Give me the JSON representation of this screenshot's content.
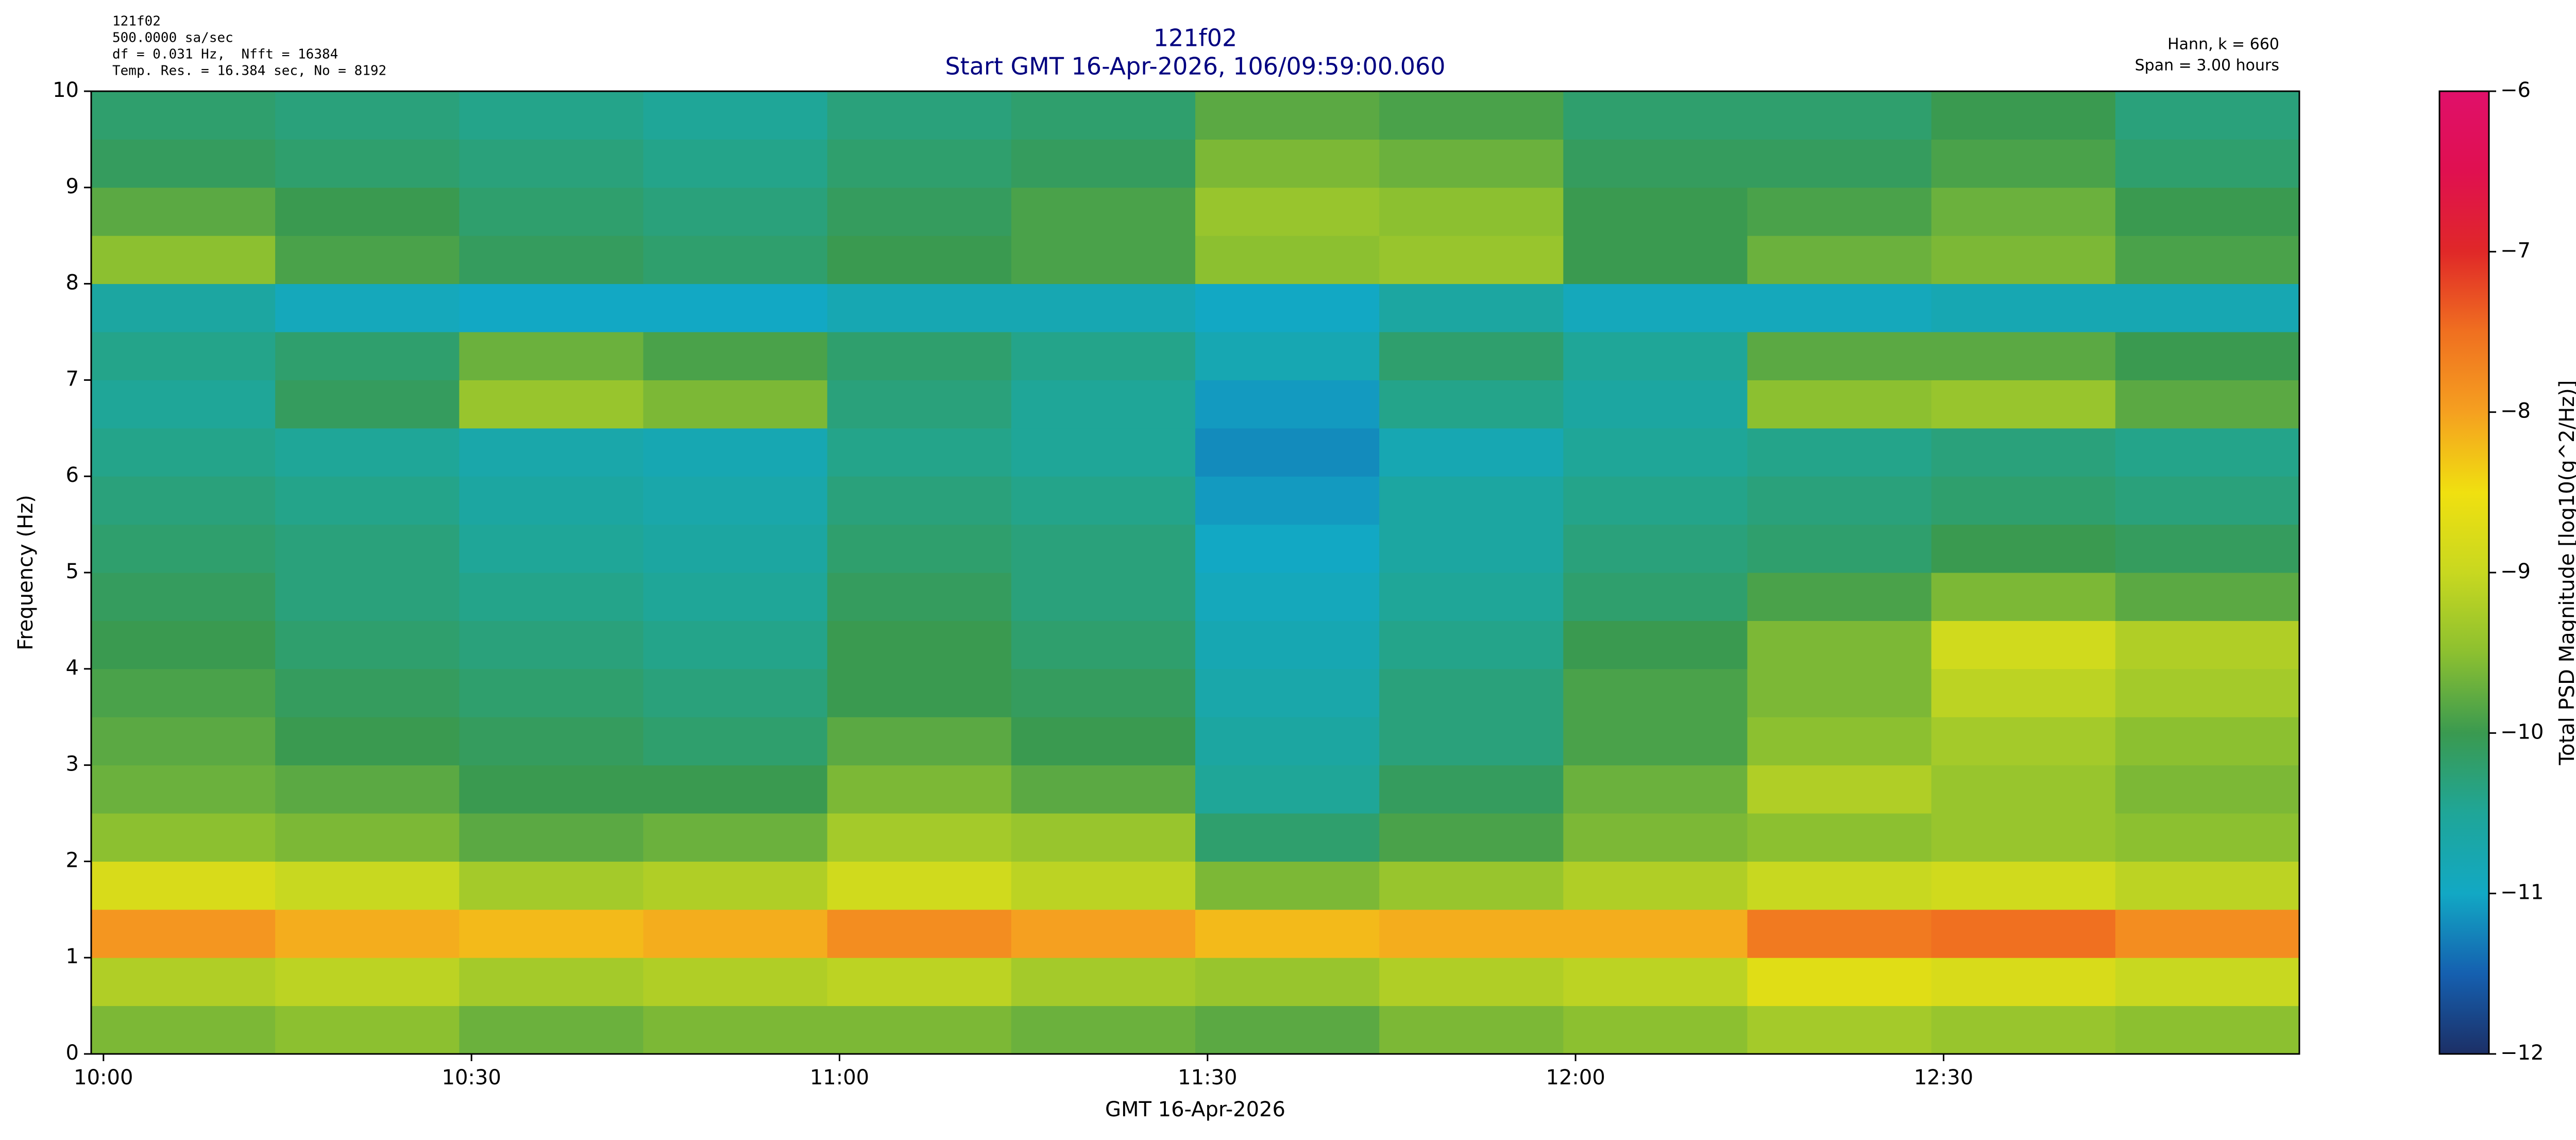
{
  "chart_data": {
    "type": "heatmap",
    "title": "121f02",
    "subtitle": "Start GMT 16-Apr-2026, 106/09:59:00.060",
    "annotations_left": [
      "121f02",
      "500.0000 sa/sec",
      "df = 0.031 Hz,  Nfft = 16384",
      "Temp. Res. = 16.384 sec, No = 8192"
    ],
    "annotations_right": [
      "Hann, k = 660",
      "Span = 3.00 hours"
    ],
    "xlabel": "GMT 16-Apr-2026",
    "ylabel": "Frequency (Hz)",
    "colorbar_label": "Total PSD Magnitude [log10(g^2/Hz)]",
    "xlim": [
      599,
      779
    ],
    "xticks": [
      {
        "value": 600,
        "label": "10:00"
      },
      {
        "value": 630,
        "label": "10:30"
      },
      {
        "value": 660,
        "label": "11:00"
      },
      {
        "value": 690,
        "label": "11:30"
      },
      {
        "value": 720,
        "label": "12:00"
      },
      {
        "value": 750,
        "label": "12:30"
      }
    ],
    "ylim": [
      0,
      10
    ],
    "yticks": [
      0,
      1,
      2,
      3,
      4,
      5,
      6,
      7,
      8,
      9,
      10
    ],
    "clim": [
      -12,
      -6
    ],
    "cticks": [
      {
        "value": -12,
        "label": "−12"
      },
      {
        "value": -11,
        "label": "−11"
      },
      {
        "value": -10,
        "label": "−10"
      },
      {
        "value": -9,
        "label": "−9"
      },
      {
        "value": -8,
        "label": "−8"
      },
      {
        "value": -7,
        "label": "−7"
      },
      {
        "value": -6,
        "label": "−6"
      }
    ],
    "colormap": [
      "#1c2f66",
      "#1560b0",
      "#12a8c4",
      "#1fa698",
      "#3a9a50",
      "#8cc030",
      "#c8d820",
      "#f0e010",
      "#f5a020",
      "#f07020",
      "#e02828",
      "#e01050",
      "#e0106a"
    ],
    "xbins": [
      599,
      614,
      629,
      644,
      659,
      674,
      689,
      704,
      719,
      734,
      749,
      764,
      779
    ],
    "ybins": [
      0,
      0.5,
      1,
      1.5,
      2,
      2.5,
      3,
      3.5,
      4,
      4.5,
      5,
      5.5,
      6,
      6.5,
      7,
      7.5,
      8,
      8.5,
      9,
      9.5,
      10
    ],
    "z": [
      [
        -9.6,
        -9.5,
        -9.7,
        -9.6,
        -9.6,
        -9.7,
        -9.8,
        -9.6,
        -9.5,
        -9.3,
        -9.4,
        -9.5
      ],
      [
        -9.2,
        -9.1,
        -9.3,
        -9.2,
        -9.1,
        -9.3,
        -9.4,
        -9.2,
        -9.1,
        -8.7,
        -8.8,
        -9.0
      ],
      [
        -7.9,
        -8.1,
        -8.2,
        -8.1,
        -7.8,
        -8.0,
        -8.2,
        -8.1,
        -8.1,
        -7.6,
        -7.5,
        -7.8
      ],
      [
        -8.8,
        -9.0,
        -9.3,
        -9.2,
        -8.9,
        -9.1,
        -9.6,
        -9.4,
        -9.2,
        -9.0,
        -8.9,
        -9.1
      ],
      [
        -9.5,
        -9.6,
        -9.8,
        -9.7,
        -9.3,
        -9.4,
        -10.2,
        -9.9,
        -9.6,
        -9.5,
        -9.4,
        -9.5
      ],
      [
        -9.7,
        -9.8,
        -10.0,
        -10.0,
        -9.6,
        -9.8,
        -10.5,
        -10.1,
        -9.7,
        -9.2,
        -9.4,
        -9.6
      ],
      [
        -9.8,
        -10.0,
        -10.1,
        -10.2,
        -9.8,
        -10.0,
        -10.6,
        -10.3,
        -9.9,
        -9.5,
        -9.3,
        -9.5
      ],
      [
        -9.9,
        -10.1,
        -10.2,
        -10.3,
        -10.0,
        -10.1,
        -10.7,
        -10.3,
        -9.9,
        -9.6,
        -9.1,
        -9.3
      ],
      [
        -10.0,
        -10.2,
        -10.3,
        -10.4,
        -10.0,
        -10.2,
        -10.8,
        -10.4,
        -10.0,
        -9.6,
        -8.9,
        -9.2
      ],
      [
        -10.1,
        -10.3,
        -10.4,
        -10.5,
        -10.1,
        -10.3,
        -10.9,
        -10.5,
        -10.2,
        -9.9,
        -9.6,
        -9.8
      ],
      [
        -10.2,
        -10.3,
        -10.5,
        -10.6,
        -10.2,
        -10.3,
        -11.0,
        -10.6,
        -10.3,
        -10.2,
        -10.0,
        -10.1
      ],
      [
        -10.3,
        -10.4,
        -10.6,
        -10.7,
        -10.3,
        -10.4,
        -11.1,
        -10.6,
        -10.4,
        -10.3,
        -10.2,
        -10.3
      ],
      [
        -10.4,
        -10.5,
        -10.7,
        -10.8,
        -10.4,
        -10.5,
        -11.2,
        -10.8,
        -10.5,
        -10.4,
        -10.3,
        -10.4
      ],
      [
        -10.5,
        -10.1,
        -9.4,
        -9.6,
        -10.3,
        -10.5,
        -11.1,
        -10.4,
        -10.6,
        -9.5,
        -9.4,
        -9.8
      ],
      [
        -10.4,
        -10.2,
        -9.7,
        -9.9,
        -10.2,
        -10.4,
        -10.8,
        -10.2,
        -10.5,
        -9.8,
        -9.8,
        -10.0
      ],
      [
        -10.6,
        -10.9,
        -11.0,
        -11.0,
        -10.8,
        -10.8,
        -11.0,
        -10.6,
        -10.9,
        -10.9,
        -10.8,
        -10.8
      ],
      [
        -9.5,
        -9.9,
        -10.1,
        -10.2,
        -10.0,
        -9.9,
        -9.5,
        -9.4,
        -10.0,
        -9.7,
        -9.6,
        -9.9
      ],
      [
        -9.8,
        -10.0,
        -10.2,
        -10.3,
        -10.1,
        -9.9,
        -9.4,
        -9.5,
        -10.0,
        -9.9,
        -9.7,
        -10.0
      ],
      [
        -10.1,
        -10.2,
        -10.3,
        -10.4,
        -10.2,
        -10.1,
        -9.6,
        -9.7,
        -10.1,
        -10.1,
        -9.9,
        -10.2
      ],
      [
        -10.2,
        -10.3,
        -10.4,
        -10.5,
        -10.3,
        -10.2,
        -9.8,
        -9.9,
        -10.2,
        -10.2,
        -10.0,
        -10.3
      ]
    ]
  }
}
